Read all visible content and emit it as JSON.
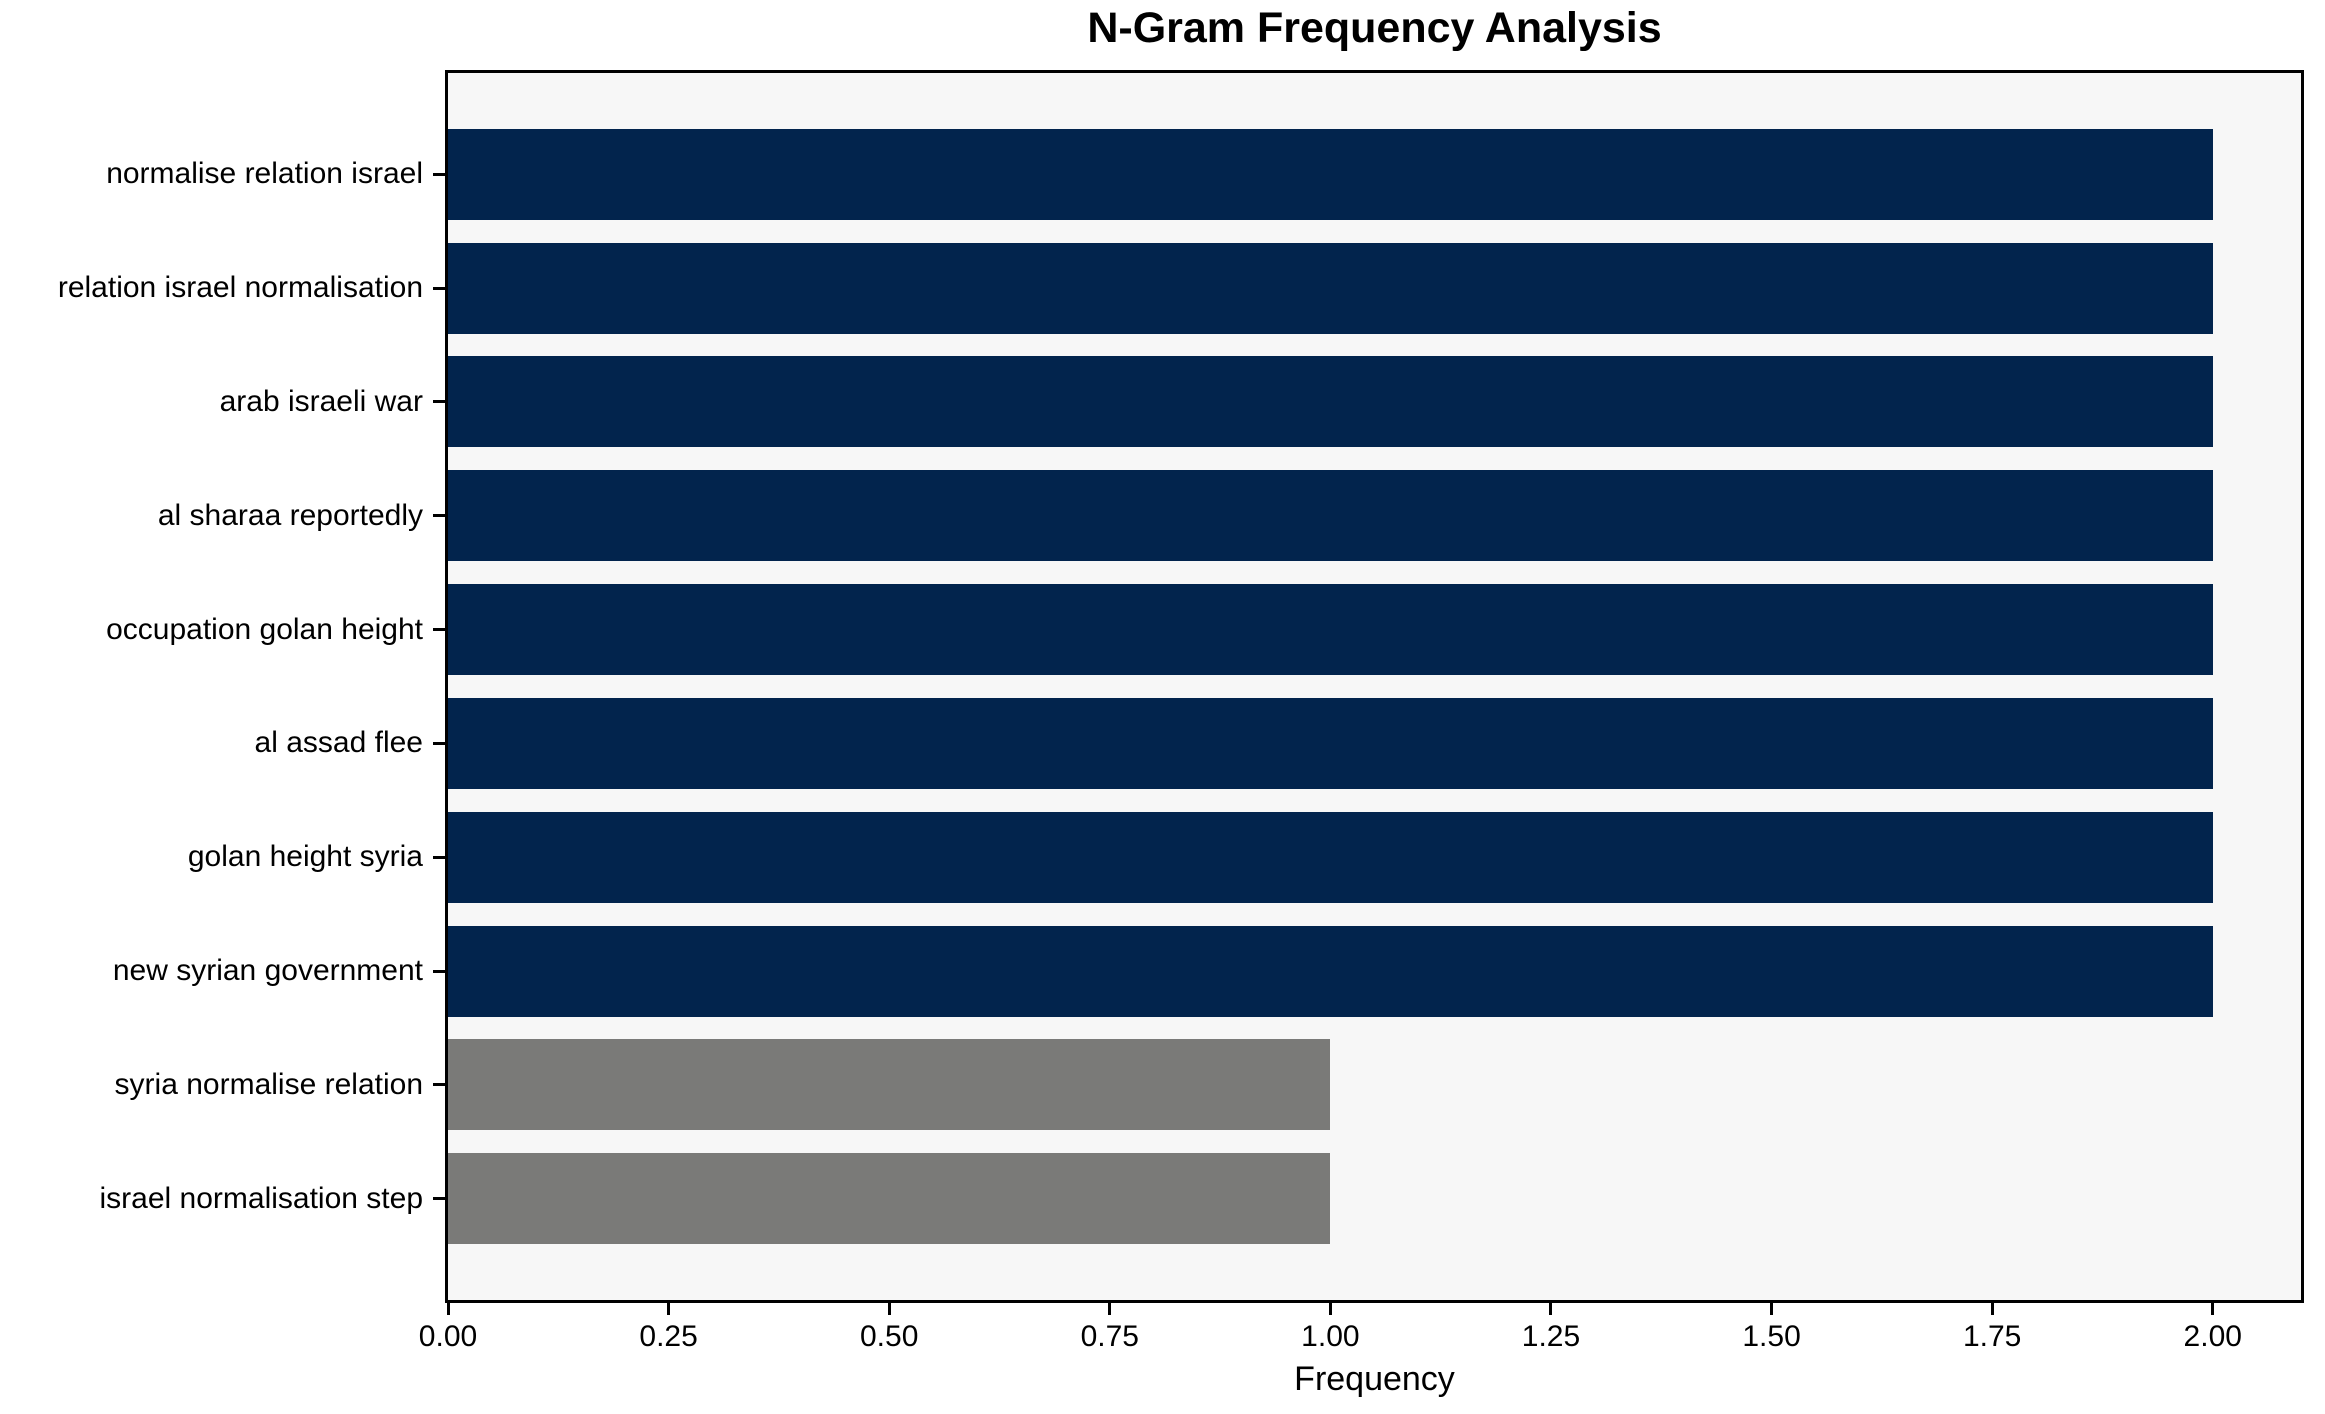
{
  "chart_data": {
    "type": "bar",
    "orientation": "horizontal",
    "title": "N-Gram Frequency Analysis",
    "xlabel": "Frequency",
    "ylabel": "",
    "categories": [
      "normalise relation israel",
      "relation israel normalisation",
      "arab israeli war",
      "al sharaa reportedly",
      "occupation golan height",
      "al assad flee",
      "golan height syria",
      "new syrian government",
      "syria normalise relation",
      "israel normalisation step"
    ],
    "values": [
      2,
      2,
      2,
      2,
      2,
      2,
      2,
      2,
      1,
      1
    ],
    "bar_colors": [
      "#02244d",
      "#02244d",
      "#02244d",
      "#02244d",
      "#02244d",
      "#02244d",
      "#02244d",
      "#02244d",
      "#7a7a78",
      "#7a7a78"
    ],
    "xlim": [
      0,
      2.1
    ],
    "xticks": [
      "0.00",
      "0.25",
      "0.50",
      "0.75",
      "1.00",
      "1.25",
      "1.50",
      "1.75",
      "2.00"
    ],
    "grid": false,
    "legend": null,
    "plot_background": "#f7f7f7",
    "figure_background": "#ffffff",
    "spine_color": "#000000"
  }
}
